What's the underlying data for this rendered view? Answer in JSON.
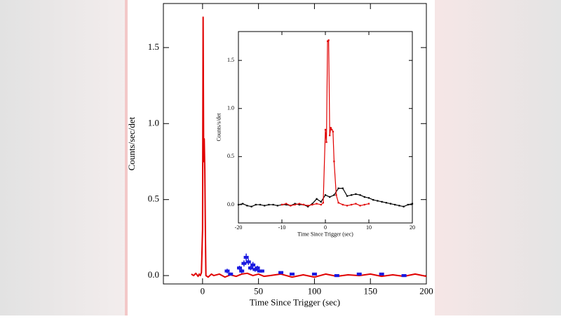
{
  "chart_data": [
    {
      "type": "line",
      "xlabel": "Time Since Trigger (sec)",
      "ylabel": "Counts/sec/det",
      "xlim": [
        -35,
        200
      ],
      "ylim": [
        -0.055,
        1.79
      ],
      "xticks": [
        0,
        50,
        100,
        150,
        200
      ],
      "yticks": [
        {
          "value": 0,
          "label": "0.0"
        },
        0.5,
        {
          "value": 1,
          "label": "1.0"
        },
        1.5
      ],
      "series": [
        {
          "color": "#e00000",
          "marker": false,
          "x": [
            -10,
            -8,
            -6,
            -4,
            -3,
            -2,
            -1,
            0,
            0.5,
            1,
            1.5,
            2,
            2.5,
            3,
            5,
            8,
            10,
            15,
            20,
            25,
            30,
            35,
            40,
            45,
            50,
            55,
            60,
            70,
            80,
            90,
            100,
            110,
            120,
            130,
            140,
            150,
            160,
            170,
            180,
            190,
            200
          ],
          "values": [
            0.01,
            0.0,
            0.015,
            -0.005,
            0.01,
            0.0,
            0.02,
            0.3,
            1.7,
            0.75,
            0.9,
            0.7,
            0.3,
            0.0,
            -0.01,
            0.01,
            0.0,
            0.01,
            -0.01,
            0.005,
            -0.005,
            0.01,
            0.015,
            0.0,
            0.01,
            -0.005,
            0.0,
            0.01,
            -0.01,
            0.005,
            -0.01,
            0.01,
            -0.005,
            0.005,
            0.0,
            0.01,
            -0.005,
            0.005,
            -0.005,
            0.01,
            -0.005
          ]
        },
        {
          "color": "#1a1ae0",
          "marker": true,
          "x": [
            22,
            25,
            33,
            35,
            37,
            39,
            41,
            43,
            45,
            47,
            49,
            51,
            53,
            70,
            80,
            100,
            120,
            140,
            160,
            180
          ],
          "values": [
            0.03,
            0.01,
            0.05,
            0.03,
            0.08,
            0.12,
            0.09,
            0.05,
            0.07,
            0.04,
            0.05,
            0.03,
            0.03,
            0.02,
            0.01,
            0.01,
            0.0,
            0.01,
            0.01,
            0.0
          ],
          "errors": [
            0.015,
            0.01,
            0.015,
            0.015,
            0.02,
            0.025,
            0.02,
            0.015,
            0.02,
            0.015,
            0.015,
            0.01,
            0.01,
            0.005,
            0.005,
            0.005,
            0.005,
            0.005,
            0.005,
            0.005
          ]
        }
      ]
    },
    {
      "type": "line",
      "xlabel": "Time Since Trigger (sec)",
      "ylabel": "Counts/s/det",
      "xlim": [
        -20,
        20
      ],
      "ylim": [
        -0.19,
        1.8
      ],
      "xticks": [
        -20,
        -10,
        0,
        10,
        20
      ],
      "yticks": [
        {
          "value": 0,
          "label": "0.0"
        },
        0.5,
        {
          "value": 1,
          "label": "1.0"
        },
        1.5
      ],
      "series": [
        {
          "color": "#000000",
          "marker": true,
          "x": [
            -20,
            -19,
            -18,
            -17,
            -16,
            -15,
            -14,
            -13,
            -12,
            -11,
            -10,
            -9,
            -8,
            -7,
            -6,
            -5,
            -4,
            -3,
            -2,
            -1,
            0,
            1,
            2,
            3,
            4,
            5,
            6,
            7,
            8,
            9,
            10,
            11,
            12,
            13,
            14,
            15,
            16,
            17,
            18,
            19,
            20
          ],
          "values": [
            0.0,
            0.01,
            -0.01,
            -0.02,
            0.0,
            0.0,
            -0.01,
            0.0,
            0.0,
            -0.01,
            0.0,
            0.0,
            -0.01,
            0.01,
            0.0,
            0.0,
            -0.02,
            0.01,
            0.06,
            0.03,
            0.1,
            0.08,
            0.1,
            0.17,
            0.17,
            0.09,
            0.1,
            0.11,
            0.1,
            0.08,
            0.07,
            0.05,
            0.04,
            0.03,
            0.02,
            0.01,
            0.0,
            -0.01,
            -0.02,
            0.0,
            0.01
          ]
        },
        {
          "color": "#e00000",
          "marker": true,
          "x": [
            -10,
            -9,
            -8,
            -7,
            -6,
            -5,
            -4,
            -3,
            -2,
            -1,
            -0.5,
            0,
            0.25,
            0.5,
            0.75,
            1,
            1.25,
            1.5,
            1.75,
            2,
            2.5,
            3,
            4,
            5,
            6,
            7,
            8,
            9,
            10
          ],
          "values": [
            0.0,
            0.01,
            -0.01,
            0.0,
            0.01,
            0.0,
            -0.01,
            0.0,
            0.01,
            0.0,
            0.02,
            0.78,
            0.65,
            1.7,
            1.71,
            0.72,
            0.8,
            0.78,
            0.76,
            0.45,
            0.1,
            0.02,
            0.0,
            -0.01,
            0.0,
            0.01,
            -0.01,
            0.0,
            0.01
          ]
        }
      ]
    }
  ]
}
